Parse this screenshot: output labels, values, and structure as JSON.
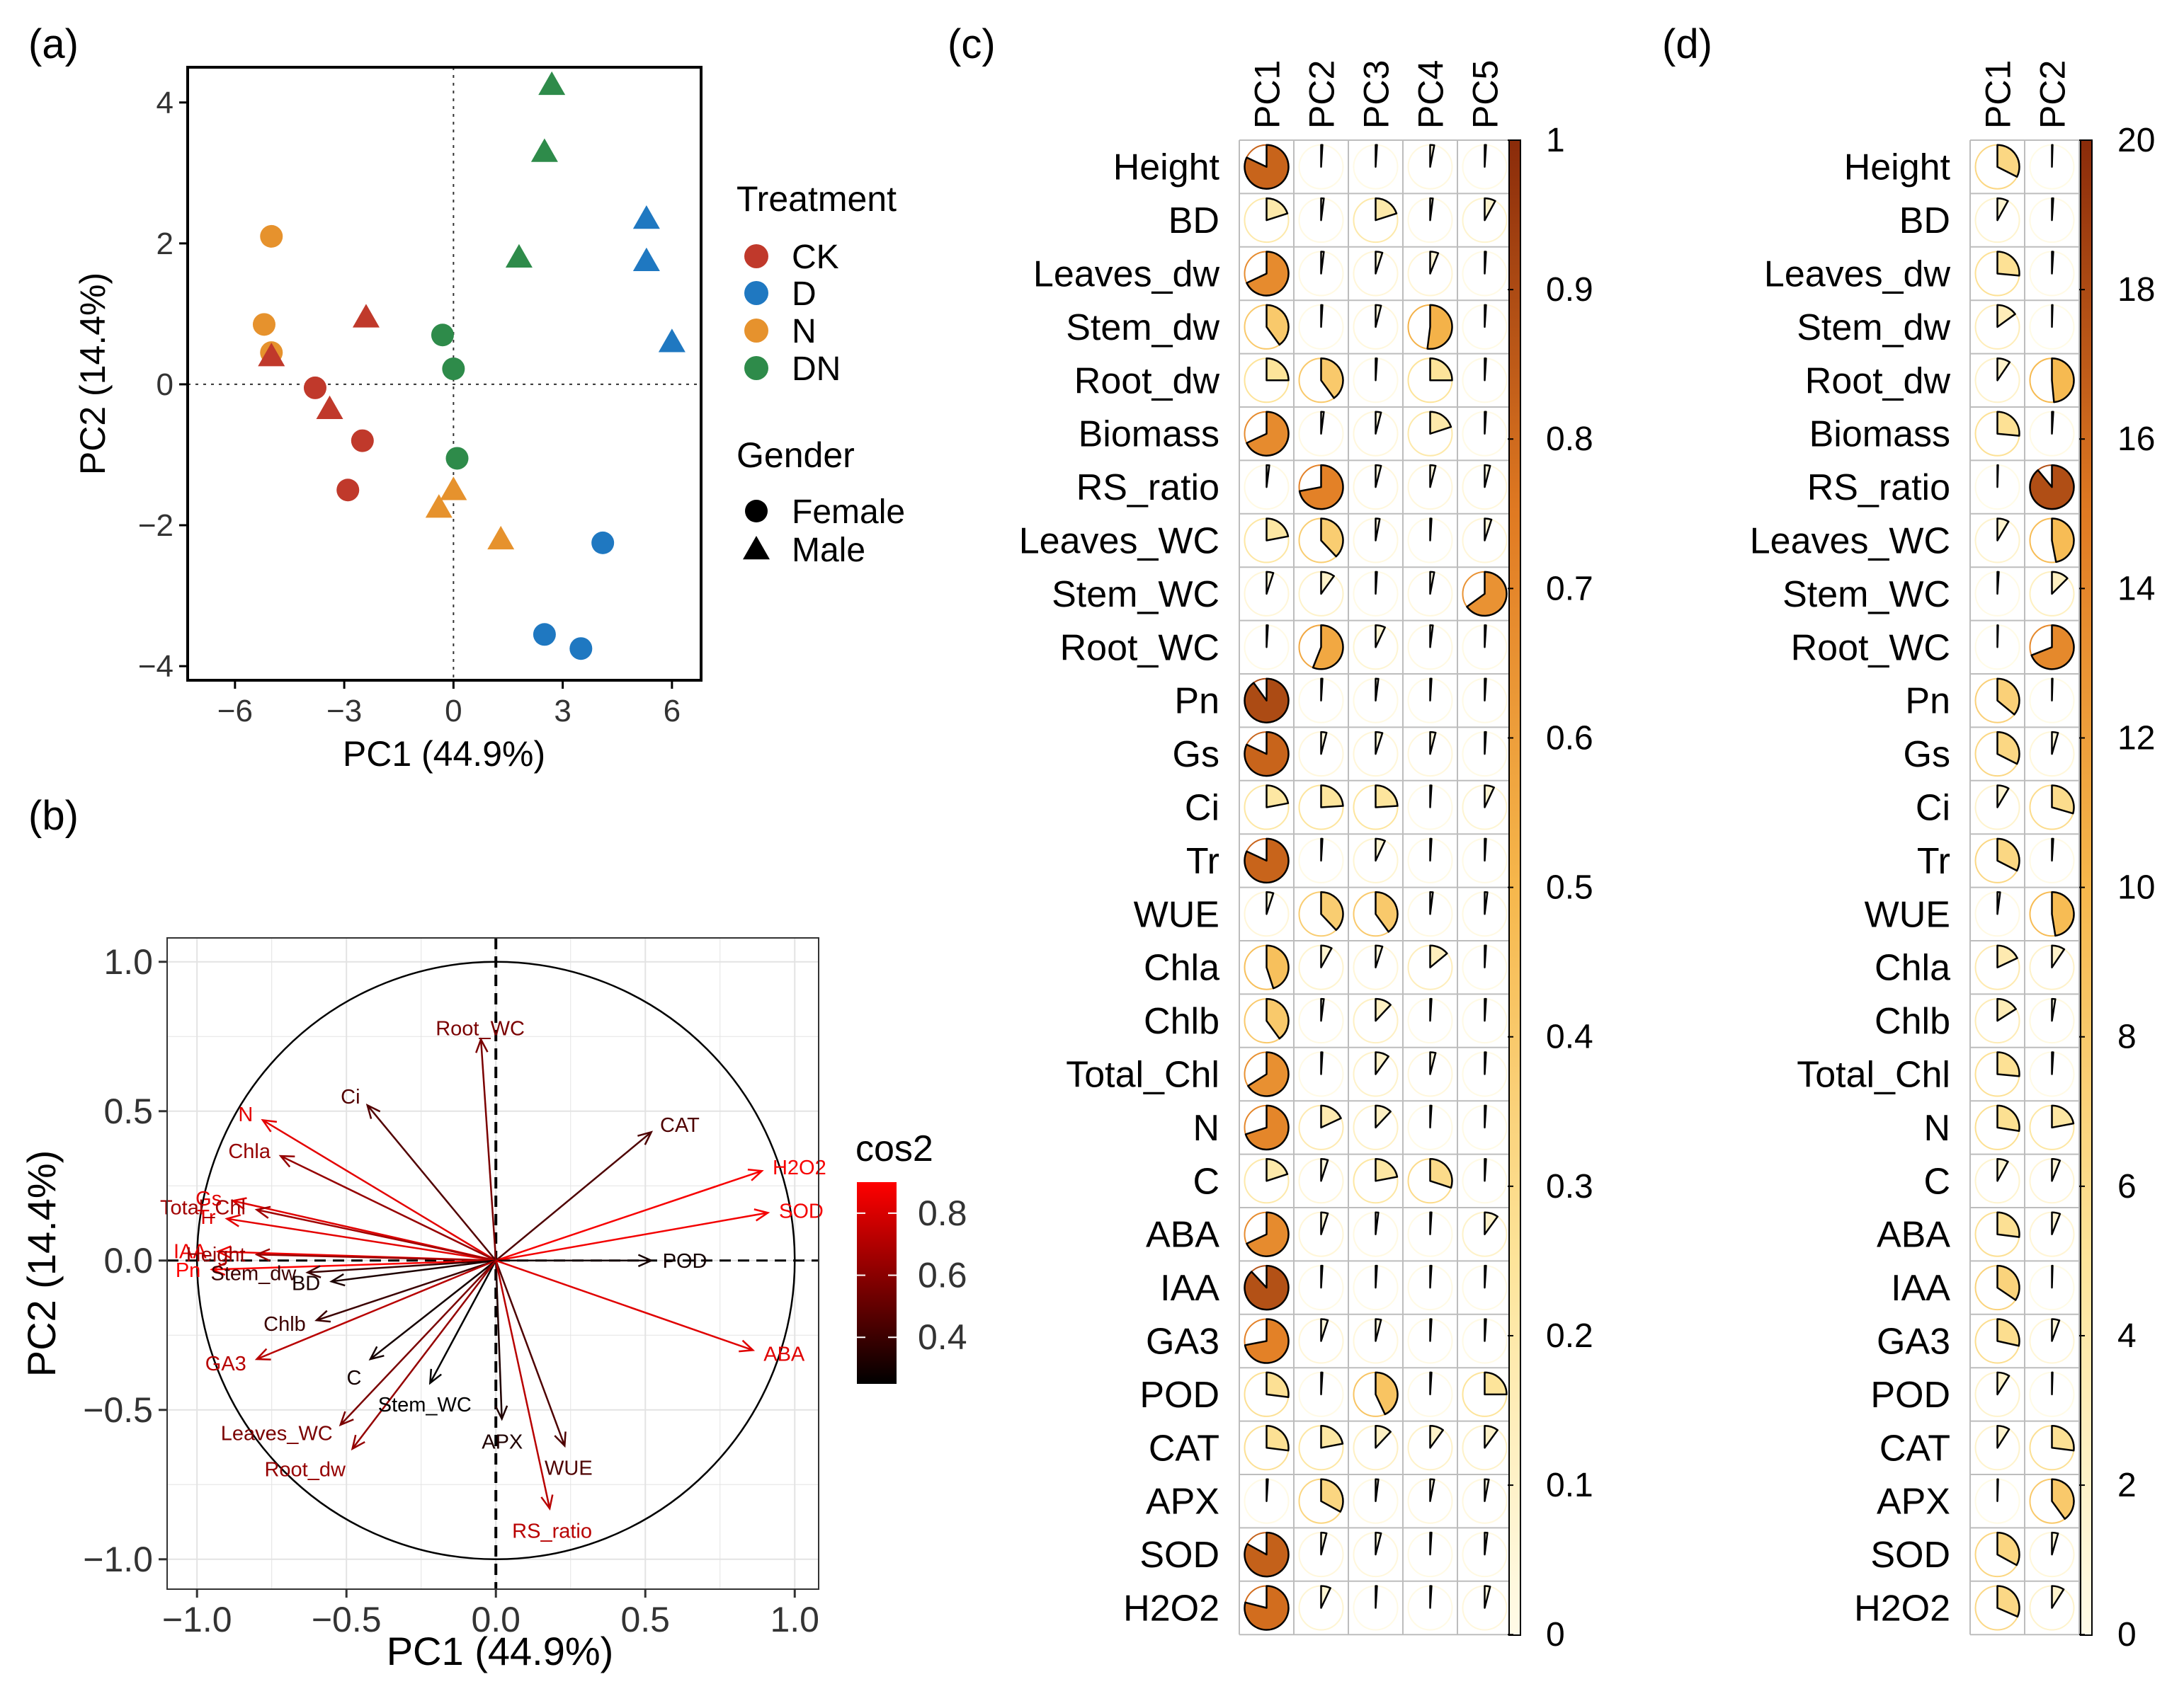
{
  "panel_labels": {
    "a": "(a)",
    "b": "(b)",
    "c": "(c)",
    "d": "(d)"
  },
  "colors": {
    "CK": "#c0392b",
    "D": "#1f78c1",
    "N": "#e6922d",
    "DN": "#2e8b4a",
    "cos2_low": "#000000",
    "cos2_high": "#ff0000",
    "pie_low": "#fffbe8",
    "pie_high": "#8a2b0a",
    "grid": "#bdbdbd"
  },
  "variables": [
    "Height",
    "BD",
    "Leaves_dw",
    "Stem_dw",
    "Root_dw",
    "Biomass",
    "RS_ratio",
    "Leaves_WC",
    "Stem_WC",
    "Root_WC",
    "Pn",
    "Gs",
    "Ci",
    "Tr",
    "WUE",
    "Chla",
    "Chlb",
    "Total_Chl",
    "N",
    "C",
    "ABA",
    "IAA",
    "GA3",
    "POD",
    "CAT",
    "APX",
    "SOD",
    "H2O2"
  ],
  "chart_data": [
    {
      "type": "scatter",
      "panel": "a",
      "title": "",
      "xlabel": "PC1 (44.9%)",
      "ylabel": "PC2 (14.4%)",
      "xlim": [
        -7.3,
        6.8
      ],
      "ylim": [
        -4.2,
        4.5
      ],
      "xticks": [
        -6,
        -3,
        0,
        3,
        6
      ],
      "xtick_labels": [
        "−6",
        "−3",
        "0",
        "3",
        "6"
      ],
      "yticks": [
        -4,
        -2,
        0,
        2,
        4
      ],
      "ytick_labels": [
        "−4",
        "−2",
        "0",
        "2",
        "4"
      ],
      "legend": {
        "treatment_title": "Treatment",
        "treatments": [
          "CK",
          "D",
          "N",
          "DN"
        ],
        "gender_title": "Gender",
        "genders": [
          "Female",
          "Male"
        ],
        "position": "right"
      },
      "points": [
        {
          "x": -5.0,
          "y": 2.1,
          "treatment": "N",
          "gender": "Female"
        },
        {
          "x": -5.2,
          "y": 0.85,
          "treatment": "N",
          "gender": "Female"
        },
        {
          "x": -5.0,
          "y": 0.45,
          "treatment": "N",
          "gender": "Female"
        },
        {
          "x": -5.0,
          "y": 0.4,
          "treatment": "CK",
          "gender": "Male"
        },
        {
          "x": -2.4,
          "y": 0.95,
          "treatment": "CK",
          "gender": "Male"
        },
        {
          "x": -3.8,
          "y": -0.05,
          "treatment": "CK",
          "gender": "Female"
        },
        {
          "x": -3.4,
          "y": -0.35,
          "treatment": "CK",
          "gender": "Male"
        },
        {
          "x": -2.5,
          "y": -0.8,
          "treatment": "CK",
          "gender": "Female"
        },
        {
          "x": -2.9,
          "y": -1.5,
          "treatment": "CK",
          "gender": "Female"
        },
        {
          "x": -0.3,
          "y": 0.7,
          "treatment": "DN",
          "gender": "Female"
        },
        {
          "x": 0.0,
          "y": 0.22,
          "treatment": "DN",
          "gender": "Female"
        },
        {
          "x": 0.1,
          "y": -1.05,
          "treatment": "DN",
          "gender": "Female"
        },
        {
          "x": 1.8,
          "y": 1.8,
          "treatment": "DN",
          "gender": "Male"
        },
        {
          "x": 2.5,
          "y": 3.3,
          "treatment": "DN",
          "gender": "Male"
        },
        {
          "x": 2.7,
          "y": 4.25,
          "treatment": "DN",
          "gender": "Male"
        },
        {
          "x": 0.0,
          "y": -1.5,
          "treatment": "N",
          "gender": "Male"
        },
        {
          "x": -0.4,
          "y": -1.75,
          "treatment": "N",
          "gender": "Male"
        },
        {
          "x": 1.3,
          "y": -2.2,
          "treatment": "N",
          "gender": "Male"
        },
        {
          "x": 4.1,
          "y": -2.25,
          "treatment": "D",
          "gender": "Female"
        },
        {
          "x": 2.5,
          "y": -3.55,
          "treatment": "D",
          "gender": "Female"
        },
        {
          "x": 3.5,
          "y": -3.75,
          "treatment": "D",
          "gender": "Female"
        },
        {
          "x": 5.3,
          "y": 2.35,
          "treatment": "D",
          "gender": "Male"
        },
        {
          "x": 5.3,
          "y": 1.75,
          "treatment": "D",
          "gender": "Male"
        },
        {
          "x": 6.0,
          "y": 0.6,
          "treatment": "D",
          "gender": "Male"
        }
      ]
    },
    {
      "type": "scatter",
      "subtype": "correlation-circle",
      "panel": "b",
      "title": "",
      "xlabel": "PC1 (44.9%)",
      "ylabel": "PC2 (14.4%)",
      "xlim": [
        -1.1,
        1.08
      ],
      "ylim": [
        -1.1,
        1.08
      ],
      "xticks": [
        -1.0,
        -0.5,
        0.0,
        0.5,
        1.0
      ],
      "xtick_labels": [
        "−1.0",
        "−0.5",
        "0.0",
        "0.5",
        "1.0"
      ],
      "yticks": [
        -1.0,
        -0.5,
        0.0,
        0.5,
        1.0
      ],
      "ytick_labels": [
        "−1.0",
        "−0.5",
        "0.0",
        "0.5",
        "1.0"
      ],
      "grid": true,
      "legend": {
        "title": "cos2",
        "ticks": [
          0.8,
          0.6,
          0.4
        ],
        "tick_labels": [
          "0.8",
          "0.6",
          "0.4"
        ],
        "range": [
          0.25,
          0.9
        ],
        "position": "right"
      },
      "arrows": [
        {
          "name": "N",
          "x": -0.78,
          "y": 0.47,
          "cos2": 0.83
        },
        {
          "name": "Chla",
          "x": -0.72,
          "y": 0.35,
          "cos2": 0.63
        },
        {
          "name": "Ci",
          "x": -0.43,
          "y": 0.52,
          "cos2": 0.46
        },
        {
          "name": "Root_WC",
          "x": -0.05,
          "y": 0.74,
          "cos2": 0.56
        },
        {
          "name": "CAT",
          "x": 0.52,
          "y": 0.43,
          "cos2": 0.45
        },
        {
          "name": "Gs",
          "x": -0.88,
          "y": 0.2,
          "cos2": 0.82
        },
        {
          "name": "Tr",
          "x": -0.9,
          "y": 0.14,
          "cos2": 0.83
        },
        {
          "name": "Total_Chl",
          "x": -0.8,
          "y": 0.17,
          "cos2": 0.66
        },
        {
          "name": "H2O2",
          "x": 0.89,
          "y": 0.3,
          "cos2": 0.88
        },
        {
          "name": "SOD",
          "x": 0.91,
          "y": 0.16,
          "cos2": 0.87
        },
        {
          "name": "IAA",
          "x": -0.93,
          "y": 0.03,
          "cos2": 0.86
        },
        {
          "name": "Height",
          "x": -0.8,
          "y": 0.02,
          "cos2": 0.64
        },
        {
          "name": "POD",
          "x": 0.52,
          "y": 0.0,
          "cos2": 0.3
        },
        {
          "name": "Pn",
          "x": -0.95,
          "y": -0.03,
          "cos2": 0.9
        },
        {
          "name": "Stem_dw",
          "x": -0.63,
          "y": -0.04,
          "cos2": 0.4
        },
        {
          "name": "BD",
          "x": -0.55,
          "y": -0.07,
          "cos2": 0.32
        },
        {
          "name": "Chlb",
          "x": -0.6,
          "y": -0.2,
          "cos2": 0.4
        },
        {
          "name": "ABA",
          "x": 0.86,
          "y": -0.3,
          "cos2": 0.82
        },
        {
          "name": "GA3",
          "x": -0.8,
          "y": -0.33,
          "cos2": 0.72
        },
        {
          "name": "C",
          "x": -0.42,
          "y": -0.33,
          "cos2": 0.3
        },
        {
          "name": "Stem_WC",
          "x": -0.22,
          "y": -0.41,
          "cos2": 0.25
        },
        {
          "name": "APX",
          "x": 0.02,
          "y": -0.53,
          "cos2": 0.33
        },
        {
          "name": "Leaves_WC",
          "x": -0.52,
          "y": -0.55,
          "cos2": 0.56
        },
        {
          "name": "Root_dw",
          "x": -0.48,
          "y": -0.63,
          "cos2": 0.63
        },
        {
          "name": "WUE",
          "x": 0.23,
          "y": -0.62,
          "cos2": 0.45
        },
        {
          "name": "RS_ratio",
          "x": 0.18,
          "y": -0.83,
          "cos2": 0.72
        }
      ]
    },
    {
      "type": "heatmap",
      "subtype": "pie-matrix",
      "panel": "c",
      "title": "",
      "columns": [
        "PC1",
        "PC2",
        "PC3",
        "PC4",
        "PC5"
      ],
      "value_range": [
        0,
        1
      ],
      "colorbar_ticks": [
        0,
        0.1,
        0.2,
        0.3,
        0.4,
        0.5,
        0.6,
        0.7,
        0.8,
        0.9,
        1
      ],
      "colorbar_tick_labels": [
        "0",
        "0.1",
        "0.2",
        "0.3",
        "0.4",
        "0.5",
        "0.6",
        "0.7",
        "0.8",
        "0.9",
        "1"
      ],
      "values": [
        [
          0.82,
          0.01,
          0.01,
          0.03,
          0.01
        ],
        [
          0.2,
          0.02,
          0.2,
          0.02,
          0.08
        ],
        [
          0.68,
          0.02,
          0.05,
          0.06,
          0.01
        ],
        [
          0.4,
          0.01,
          0.04,
          0.52,
          0.01
        ],
        [
          0.25,
          0.4,
          0.01,
          0.25,
          0.01
        ],
        [
          0.68,
          0.02,
          0.04,
          0.2,
          0.01
        ],
        [
          0.02,
          0.72,
          0.04,
          0.04,
          0.04
        ],
        [
          0.22,
          0.38,
          0.03,
          0.01,
          0.05
        ],
        [
          0.05,
          0.1,
          0.01,
          0.03,
          0.65
        ],
        [
          0.01,
          0.56,
          0.07,
          0.02,
          0.01
        ],
        [
          0.9,
          0.01,
          0.02,
          0.01,
          0.01
        ],
        [
          0.82,
          0.04,
          0.05,
          0.04,
          0.01
        ],
        [
          0.22,
          0.24,
          0.24,
          0.01,
          0.07
        ],
        [
          0.82,
          0.01,
          0.07,
          0.01,
          0.01
        ],
        [
          0.05,
          0.38,
          0.4,
          0.02,
          0.02
        ],
        [
          0.45,
          0.08,
          0.05,
          0.14,
          0.01
        ],
        [
          0.4,
          0.02,
          0.12,
          0.01,
          0.01
        ],
        [
          0.66,
          0.01,
          0.1,
          0.04,
          0.01
        ],
        [
          0.7,
          0.18,
          0.12,
          0.01,
          0.01
        ],
        [
          0.2,
          0.05,
          0.22,
          0.3,
          0.01
        ],
        [
          0.68,
          0.05,
          0.02,
          0.01,
          0.1
        ],
        [
          0.88,
          0.01,
          0.01,
          0.01,
          0.01
        ],
        [
          0.72,
          0.05,
          0.04,
          0.01,
          0.01
        ],
        [
          0.27,
          0.01,
          0.43,
          0.01,
          0.25
        ],
        [
          0.27,
          0.22,
          0.12,
          0.1,
          0.1
        ],
        [
          0.01,
          0.33,
          0.02,
          0.03,
          0.03
        ],
        [
          0.83,
          0.04,
          0.04,
          0.01,
          0.02
        ],
        [
          0.79,
          0.07,
          0.01,
          0.01,
          0.04
        ]
      ]
    },
    {
      "type": "heatmap",
      "subtype": "pie-matrix",
      "panel": "d",
      "title": "",
      "columns": [
        "PC1",
        "PC2"
      ],
      "value_range": [
        0,
        20
      ],
      "colorbar_ticks": [
        0,
        2,
        4,
        6,
        8,
        10,
        12,
        14,
        16,
        18,
        20
      ],
      "colorbar_tick_labels": [
        "0",
        "2",
        "4",
        "6",
        "8",
        "10",
        "12",
        "14",
        "16",
        "18",
        "20"
      ],
      "values": [
        [
          6.5,
          0.1
        ],
        [
          1.6,
          0.2
        ],
        [
          5.3,
          0.2
        ],
        [
          3.0,
          0.1
        ],
        [
          1.9,
          9.7
        ],
        [
          5.3,
          0.2
        ],
        [
          0.1,
          17.8
        ],
        [
          1.7,
          9.4
        ],
        [
          0.2,
          2.5
        ],
        [
          0.1,
          13.8
        ],
        [
          7.2,
          0.1
        ],
        [
          6.5,
          0.9
        ],
        [
          1.7,
          5.9
        ],
        [
          6.5,
          0.2
        ],
        [
          0.4,
          9.5
        ],
        [
          3.6,
          1.9
        ],
        [
          3.2,
          0.5
        ],
        [
          5.3,
          0.2
        ],
        [
          5.5,
          4.4
        ],
        [
          1.6,
          1.2
        ],
        [
          5.4,
          1.2
        ],
        [
          6.9,
          0.1
        ],
        [
          5.7,
          1.1
        ],
        [
          1.8,
          0.1
        ],
        [
          1.8,
          5.4
        ],
        [
          0.1,
          8.0
        ],
        [
          6.6,
          0.9
        ],
        [
          6.3,
          1.8
        ]
      ]
    }
  ]
}
